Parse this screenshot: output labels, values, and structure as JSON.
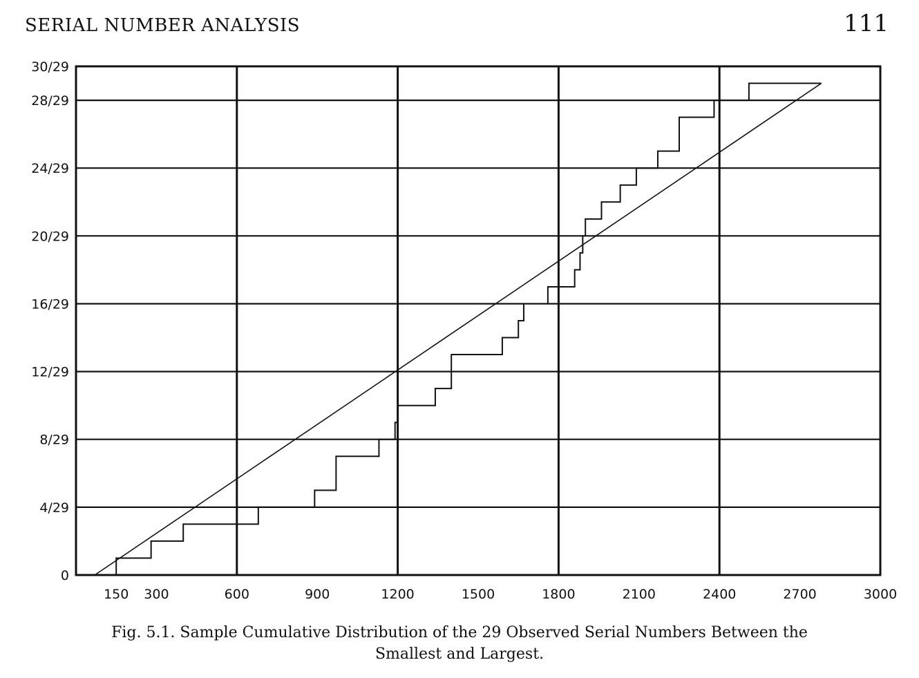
{
  "page": {
    "running_title": "SERIAL NUMBER ANALYSIS",
    "page_number": "111"
  },
  "caption": {
    "line1": "Fig. 5.1. Sample Cumulative Distribution of the 29 Observed Serial Numbers Between the",
    "line2": "Smallest and Largest."
  },
  "chart_data": {
    "type": "line",
    "title": "",
    "xlabel": "",
    "ylabel": "",
    "xlim": [
      0,
      3000
    ],
    "ylim": [
      0,
      1.0345
    ],
    "grid": true,
    "x_ticks": [
      {
        "value": 150,
        "label": "150"
      },
      {
        "value": 300,
        "label": "300"
      },
      {
        "value": 600,
        "label": "600"
      },
      {
        "value": 900,
        "label": "900"
      },
      {
        "value": 1200,
        "label": "1200"
      },
      {
        "value": 1500,
        "label": "1500"
      },
      {
        "value": 1800,
        "label": "1800"
      },
      {
        "value": 2100,
        "label": "2100"
      },
      {
        "value": 2400,
        "label": "2400"
      },
      {
        "value": 2700,
        "label": "2700"
      },
      {
        "value": 3000,
        "label": "3000"
      }
    ],
    "x_gridlines": [
      600,
      1200,
      1800,
      2400
    ],
    "y_ticks": [
      {
        "value": 0,
        "label": "0"
      },
      {
        "value": 0.1379,
        "label": "4/29"
      },
      {
        "value": 0.2759,
        "label": "8/29"
      },
      {
        "value": 0.4138,
        "label": "12/29"
      },
      {
        "value": 0.5517,
        "label": "16/29"
      },
      {
        "value": 0.6897,
        "label": "20/29"
      },
      {
        "value": 0.8276,
        "label": "24/29"
      },
      {
        "value": 0.9655,
        "label": "28/29"
      },
      {
        "value": 1.0345,
        "label": "30/29"
      }
    ],
    "series": [
      {
        "kind": "step",
        "x_start": 120,
        "jumps": [
          150,
          280,
          400,
          680,
          890,
          970,
          1130,
          1190,
          1200,
          1210,
          1340,
          1400,
          1590,
          1650,
          1670,
          1760,
          1860,
          1880,
          1890,
          1900,
          1960,
          2030,
          2090,
          2170,
          2250,
          2380,
          2500,
          2510,
          2780
        ],
        "levels": [
          0.0345,
          0.069,
          0.1034,
          0.1379,
          0.1724,
          0.2414,
          0.2759,
          0.3103,
          0.3448,
          0.3448,
          0.3793,
          0.4483,
          0.4828,
          0.5172,
          0.5517,
          0.5862,
          0.6207,
          0.6552,
          0.6897,
          0.7241,
          0.7586,
          0.7931,
          0.8276,
          0.8621,
          0.931,
          0.9655,
          0.9655,
          1.0,
          1.0
        ]
      },
      {
        "kind": "line",
        "x": [
          70,
          2780
        ],
        "y": [
          0,
          1.0
        ]
      }
    ]
  }
}
